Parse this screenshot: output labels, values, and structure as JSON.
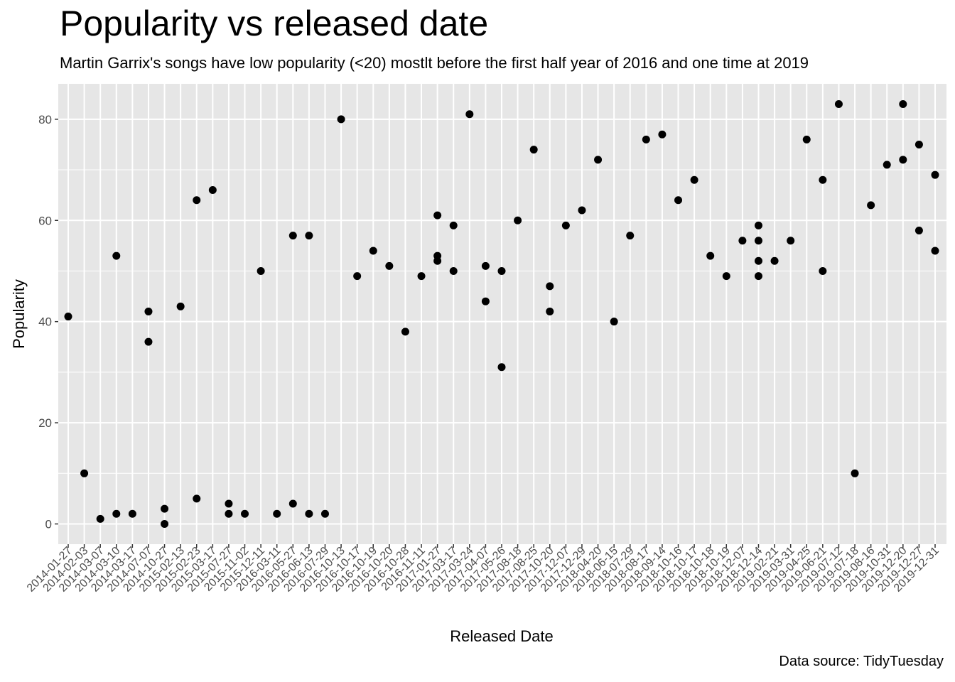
{
  "chart_data": {
    "type": "scatter",
    "title": "Popularity vs released date",
    "subtitle": "Martin Garrix's songs have low popularity (<20) mostlt before the first half year of 2016 and one time at 2019",
    "caption": "Data source: TidyTuesday",
    "xlabel": "Released Date",
    "ylabel": "Popularity",
    "ylim": [
      -4,
      87
    ],
    "yticks": [
      0,
      20,
      40,
      60,
      80
    ],
    "grid": true,
    "legend": "none",
    "colors": {
      "panel": "#e6e6e6",
      "grid": "#ffffff",
      "point": "#000000",
      "tick_label": "#4d4d4d"
    },
    "categories": [
      "2014-01-27",
      "2014-02-03",
      "2014-03-07",
      "2014-03-10",
      "2014-03-17",
      "2014-07-07",
      "2014-10-27",
      "2015-02-13",
      "2015-02-23",
      "2015-03-17",
      "2015-07-27",
      "2015-11-02",
      "2015-12-11",
      "2016-03-11",
      "2016-05-27",
      "2016-06-13",
      "2016-07-29",
      "2016-10-13",
      "2016-10-17",
      "2016-10-19",
      "2016-10-20",
      "2016-10-28",
      "2016-11-11",
      "2017-01-27",
      "2017-03-17",
      "2017-03-24",
      "2017-04-07",
      "2017-05-26",
      "2017-08-18",
      "2017-08-25",
      "2017-10-20",
      "2017-12-07",
      "2017-12-29",
      "2018-04-20",
      "2018-06-15",
      "2018-07-29",
      "2018-08-17",
      "2018-09-14",
      "2018-10-16",
      "2018-10-17",
      "2018-10-18",
      "2018-10-19",
      "2018-12-07",
      "2018-12-14",
      "2019-02-21",
      "2019-03-31",
      "2019-04-25",
      "2019-06-21",
      "2019-07-12",
      "2019-07-18",
      "2019-08-16",
      "2019-10-31",
      "2019-12-20",
      "2019-12-27",
      "2019-12-31"
    ],
    "points": [
      {
        "x": "2014-01-27",
        "y": 41
      },
      {
        "x": "2014-02-03",
        "y": 10
      },
      {
        "x": "2014-03-07",
        "y": 1
      },
      {
        "x": "2014-03-10",
        "y": 2
      },
      {
        "x": "2014-03-10",
        "y": 53
      },
      {
        "x": "2014-03-17",
        "y": 2
      },
      {
        "x": "2014-07-07",
        "y": 42
      },
      {
        "x": "2014-07-07",
        "y": 36
      },
      {
        "x": "2014-10-27",
        "y": 3
      },
      {
        "x": "2014-10-27",
        "y": 0
      },
      {
        "x": "2015-02-13",
        "y": 43
      },
      {
        "x": "2015-02-23",
        "y": 64
      },
      {
        "x": "2015-02-23",
        "y": 5
      },
      {
        "x": "2015-03-17",
        "y": 66
      },
      {
        "x": "2015-07-27",
        "y": 4
      },
      {
        "x": "2015-07-27",
        "y": 2
      },
      {
        "x": "2015-11-02",
        "y": 2
      },
      {
        "x": "2015-12-11",
        "y": 50
      },
      {
        "x": "2016-03-11",
        "y": 2
      },
      {
        "x": "2016-05-27",
        "y": 57
      },
      {
        "x": "2016-05-27",
        "y": 4
      },
      {
        "x": "2016-06-13",
        "y": 57
      },
      {
        "x": "2016-06-13",
        "y": 2
      },
      {
        "x": "2016-07-29",
        "y": 2
      },
      {
        "x": "2016-10-13",
        "y": 80
      },
      {
        "x": "2016-10-17",
        "y": 49
      },
      {
        "x": "2016-10-19",
        "y": 54
      },
      {
        "x": "2016-10-20",
        "y": 51
      },
      {
        "x": "2016-10-28",
        "y": 38
      },
      {
        "x": "2016-11-11",
        "y": 49
      },
      {
        "x": "2017-01-27",
        "y": 61
      },
      {
        "x": "2017-01-27",
        "y": 53
      },
      {
        "x": "2017-01-27",
        "y": 52
      },
      {
        "x": "2017-03-17",
        "y": 59
      },
      {
        "x": "2017-03-17",
        "y": 50
      },
      {
        "x": "2017-03-24",
        "y": 81
      },
      {
        "x": "2017-04-07",
        "y": 51
      },
      {
        "x": "2017-04-07",
        "y": 44
      },
      {
        "x": "2017-05-26",
        "y": 50
      },
      {
        "x": "2017-05-26",
        "y": 31
      },
      {
        "x": "2017-08-18",
        "y": 60
      },
      {
        "x": "2017-08-25",
        "y": 74
      },
      {
        "x": "2017-10-20",
        "y": 47
      },
      {
        "x": "2017-10-20",
        "y": 42
      },
      {
        "x": "2017-12-07",
        "y": 59
      },
      {
        "x": "2017-12-29",
        "y": 62
      },
      {
        "x": "2018-04-20",
        "y": 72
      },
      {
        "x": "2018-06-15",
        "y": 40
      },
      {
        "x": "2018-07-29",
        "y": 57
      },
      {
        "x": "2018-08-17",
        "y": 76
      },
      {
        "x": "2018-09-14",
        "y": 77
      },
      {
        "x": "2018-10-16",
        "y": 64
      },
      {
        "x": "2018-10-17",
        "y": 68
      },
      {
        "x": "2018-10-18",
        "y": 53
      },
      {
        "x": "2018-10-19",
        "y": 49
      },
      {
        "x": "2018-12-07",
        "y": 56
      },
      {
        "x": "2018-12-14",
        "y": 59
      },
      {
        "x": "2018-12-14",
        "y": 56
      },
      {
        "x": "2018-12-14",
        "y": 52
      },
      {
        "x": "2018-12-14",
        "y": 49
      },
      {
        "x": "2019-02-21",
        "y": 52
      },
      {
        "x": "2019-03-31",
        "y": 56
      },
      {
        "x": "2019-04-25",
        "y": 76
      },
      {
        "x": "2019-06-21",
        "y": 68
      },
      {
        "x": "2019-06-21",
        "y": 50
      },
      {
        "x": "2019-07-12",
        "y": 83
      },
      {
        "x": "2019-07-18",
        "y": 10
      },
      {
        "x": "2019-08-16",
        "y": 63
      },
      {
        "x": "2019-10-31",
        "y": 71
      },
      {
        "x": "2019-12-20",
        "y": 72
      },
      {
        "x": "2019-12-20",
        "y": 83
      },
      {
        "x": "2019-12-27",
        "y": 58
      },
      {
        "x": "2019-12-27",
        "y": 75
      },
      {
        "x": "2019-12-31",
        "y": 69
      },
      {
        "x": "2019-12-31",
        "y": 54
      }
    ]
  }
}
